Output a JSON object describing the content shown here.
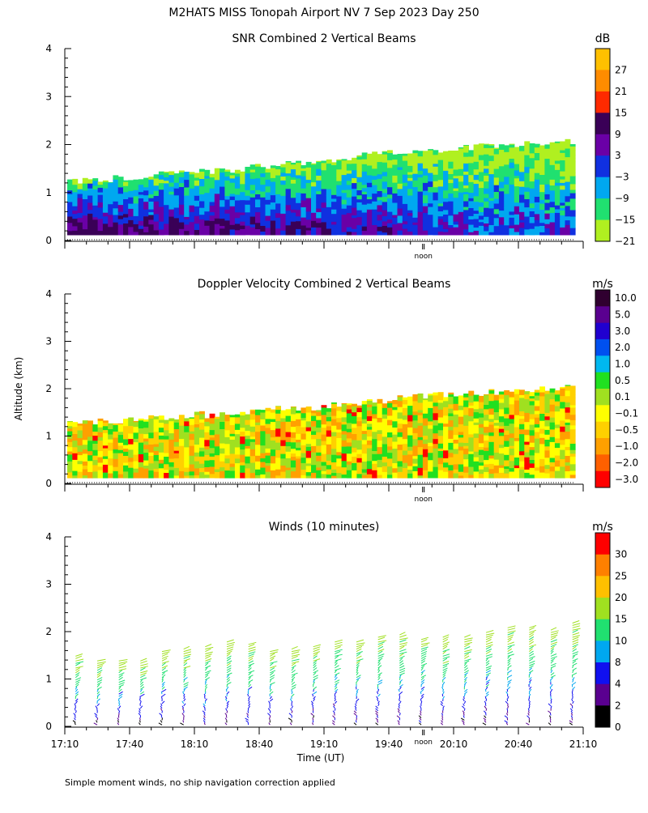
{
  "title": "M2HATS MISS Tonopah Airport NV   7 Sep 2023 Day 250",
  "ylabel": "Altitude (km)",
  "xlabel": "Time (UT)",
  "footnote": "Simple moment winds, no ship navigation correction applied",
  "noon_label": "noon",
  "chart_data": [
    {
      "type": "heatmap",
      "title": "SNR Combined 2 Vertical Beams",
      "unit": "dB",
      "ylim": [
        0,
        4
      ],
      "yticks": [
        "0",
        "1",
        "2",
        "3",
        "4"
      ],
      "xlim": [
        17.1667,
        21.1667
      ],
      "echo_top_km": [
        1.25,
        1.25,
        1.3,
        1.35,
        1.4,
        1.4,
        1.45,
        1.45,
        1.55,
        1.6,
        1.65,
        1.7,
        1.75,
        1.8,
        1.85,
        1.85,
        1.9,
        1.95,
        1.95,
        2.0,
        2.0,
        2.05
      ],
      "colorbar": {
        "labels": [
          "27",
          "21",
          "15",
          "9",
          "3",
          "−3",
          "−9",
          "−15",
          "−21"
        ],
        "colors": [
          "#ffc000",
          "#ff8c00",
          "#ff2a00",
          "#3a0057",
          "#6a00a6",
          "#1030e0",
          "#00a8f0",
          "#20e070",
          "#b0f020"
        ]
      }
    },
    {
      "type": "heatmap",
      "title": "Doppler Velocity Combined 2 Vertical Beams",
      "unit": "m/s",
      "ylim": [
        0,
        4
      ],
      "yticks": [
        "0",
        "1",
        "2",
        "3",
        "4"
      ],
      "xlim": [
        17.1667,
        21.1667
      ],
      "echo_top_km": [
        1.3,
        1.3,
        1.3,
        1.35,
        1.4,
        1.45,
        1.45,
        1.5,
        1.55,
        1.6,
        1.6,
        1.65,
        1.7,
        1.75,
        1.8,
        1.85,
        1.9,
        1.9,
        1.95,
        2.0,
        2.0,
        2.05
      ],
      "colorbar": {
        "labels": [
          "10.0",
          "5.0",
          "3.0",
          "2.0",
          "1.0",
          "0.5",
          "0.1",
          "−0.1",
          "−0.5",
          "−1.0",
          "−2.0",
          "−3.0"
        ],
        "colors": [
          "#300030",
          "#5a0090",
          "#2000d0",
          "#0050f0",
          "#00b8f0",
          "#20e020",
          "#a0e020",
          "#ffff00",
          "#ffd000",
          "#ffa000",
          "#ff6000",
          "#ff0000"
        ]
      }
    },
    {
      "type": "scatter",
      "title": "Winds (10 minutes)",
      "unit": "m/s",
      "ylim": [
        0,
        4
      ],
      "yticks": [
        "0",
        "1",
        "2",
        "3",
        "4"
      ],
      "xlim": [
        17.1667,
        21.1667
      ],
      "x_tick_labels": [
        "17:10",
        "17:40",
        "18:10",
        "18:40",
        "19:10",
        "19:40",
        "20:10",
        "20:40",
        "21:10"
      ],
      "x_tick_values": [
        17.1667,
        17.6667,
        18.1667,
        18.6667,
        19.1667,
        19.6667,
        20.1667,
        20.6667,
        21.1667
      ],
      "profile_times": [
        17.25,
        17.4167,
        17.5833,
        17.75,
        17.9167,
        18.0833,
        18.25,
        18.4167,
        18.5833,
        18.75,
        18.9167,
        19.0833,
        19.25,
        19.4167,
        19.5833,
        19.75,
        19.9167,
        20.0833,
        20.25,
        20.4167,
        20.5833,
        20.75,
        20.9167,
        21.0833
      ],
      "profile_tops_km": [
        1.5,
        1.4,
        1.4,
        1.4,
        1.6,
        1.65,
        1.7,
        1.8,
        1.75,
        1.6,
        1.65,
        1.7,
        1.8,
        1.8,
        1.9,
        1.95,
        1.85,
        1.9,
        1.9,
        2.0,
        2.1,
        2.1,
        2.05,
        2.2
      ],
      "colorbar": {
        "labels": [
          "30",
          "25",
          "20",
          "15",
          "10",
          "8",
          "4",
          "2",
          "0"
        ],
        "colors": [
          "#ff0000",
          "#ff8000",
          "#ffc000",
          "#a0e020",
          "#20e070",
          "#00a8f0",
          "#1010f0",
          "#5a0090",
          "#000000"
        ]
      }
    }
  ]
}
